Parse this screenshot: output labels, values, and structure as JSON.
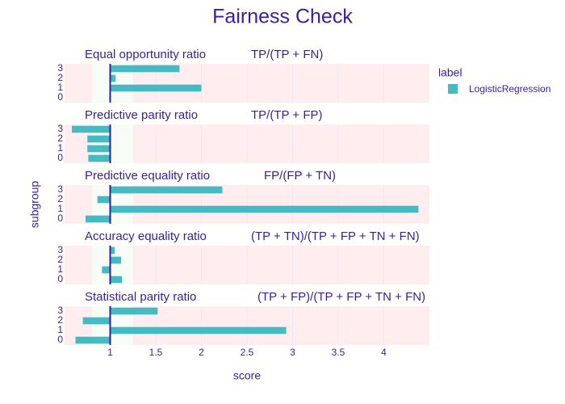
{
  "chart_data": {
    "type": "bar",
    "orientation": "horizontal",
    "title": "Fairness Check",
    "xlabel": "score",
    "ylabel": "subgroup",
    "xlim": [
      0.5,
      4.5
    ],
    "xticks": [
      "1",
      "1.5",
      "2",
      "2.5",
      "3",
      "3.5",
      "4"
    ],
    "reference_line": 1,
    "fair_band": [
      0.8,
      1.25
    ],
    "legend": {
      "title": "label",
      "position": "right",
      "entries": [
        "LogisticRegression"
      ]
    },
    "colors": {
      "bar": "#46bac2",
      "text": "#371ea3",
      "unfair_region": "#ffedf0",
      "fair_region": "#f7fcf6",
      "reference_line": "#371ea3"
    },
    "categories": [
      "0",
      "1",
      "2",
      "3"
    ],
    "series": [
      {
        "title": "Equal opportunity ratio",
        "formula": "TP/(TP + FN)",
        "values": [
          0.99,
          2.0,
          1.06,
          1.76
        ]
      },
      {
        "title": "Predictive parity ratio",
        "formula": "TP/(TP + FP)",
        "values": [
          0.76,
          0.75,
          0.75,
          0.58
        ]
      },
      {
        "title": "Predictive equality ratio",
        "formula": "FP/(FP + TN)",
        "values": [
          0.73,
          4.38,
          0.86,
          2.23
        ]
      },
      {
        "title": "Accuracy equality ratio",
        "formula": "(TP + TN)/(TP + FP + TN + FN)",
        "values": [
          1.13,
          0.91,
          1.12,
          1.05
        ]
      },
      {
        "title": "Statistical parity ratio",
        "formula": "(TP + FP)/(TP + FP + TN + FN)",
        "values": [
          0.62,
          2.93,
          0.7,
          1.52
        ]
      }
    ]
  }
}
